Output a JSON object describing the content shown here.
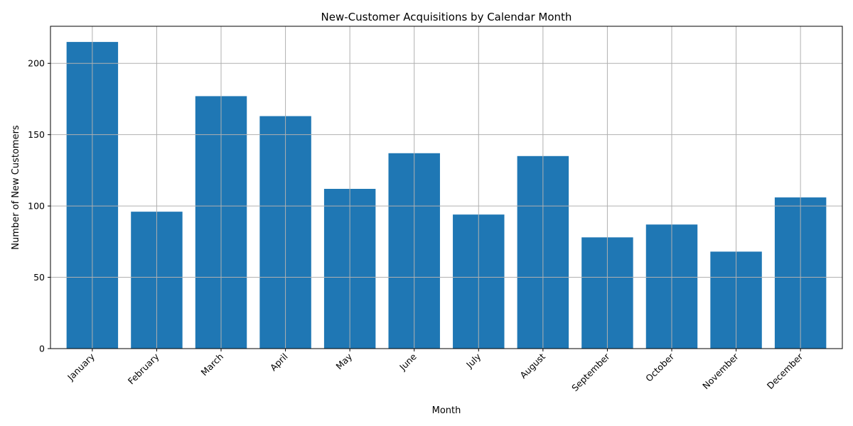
{
  "chart_data": {
    "type": "bar",
    "title": "New-Customer Acquisitions by Calendar Month",
    "xlabel": "Month",
    "ylabel": "Number of New Customers",
    "categories": [
      "January",
      "February",
      "March",
      "April",
      "May",
      "June",
      "July",
      "August",
      "September",
      "October",
      "November",
      "December"
    ],
    "values": [
      215,
      96,
      177,
      163,
      112,
      137,
      94,
      135,
      78,
      87,
      68,
      106
    ],
    "ylim": [
      0,
      226
    ],
    "yticks": [
      0,
      50,
      100,
      150,
      200
    ],
    "grid": true,
    "bar_color": "#1f77b4"
  }
}
